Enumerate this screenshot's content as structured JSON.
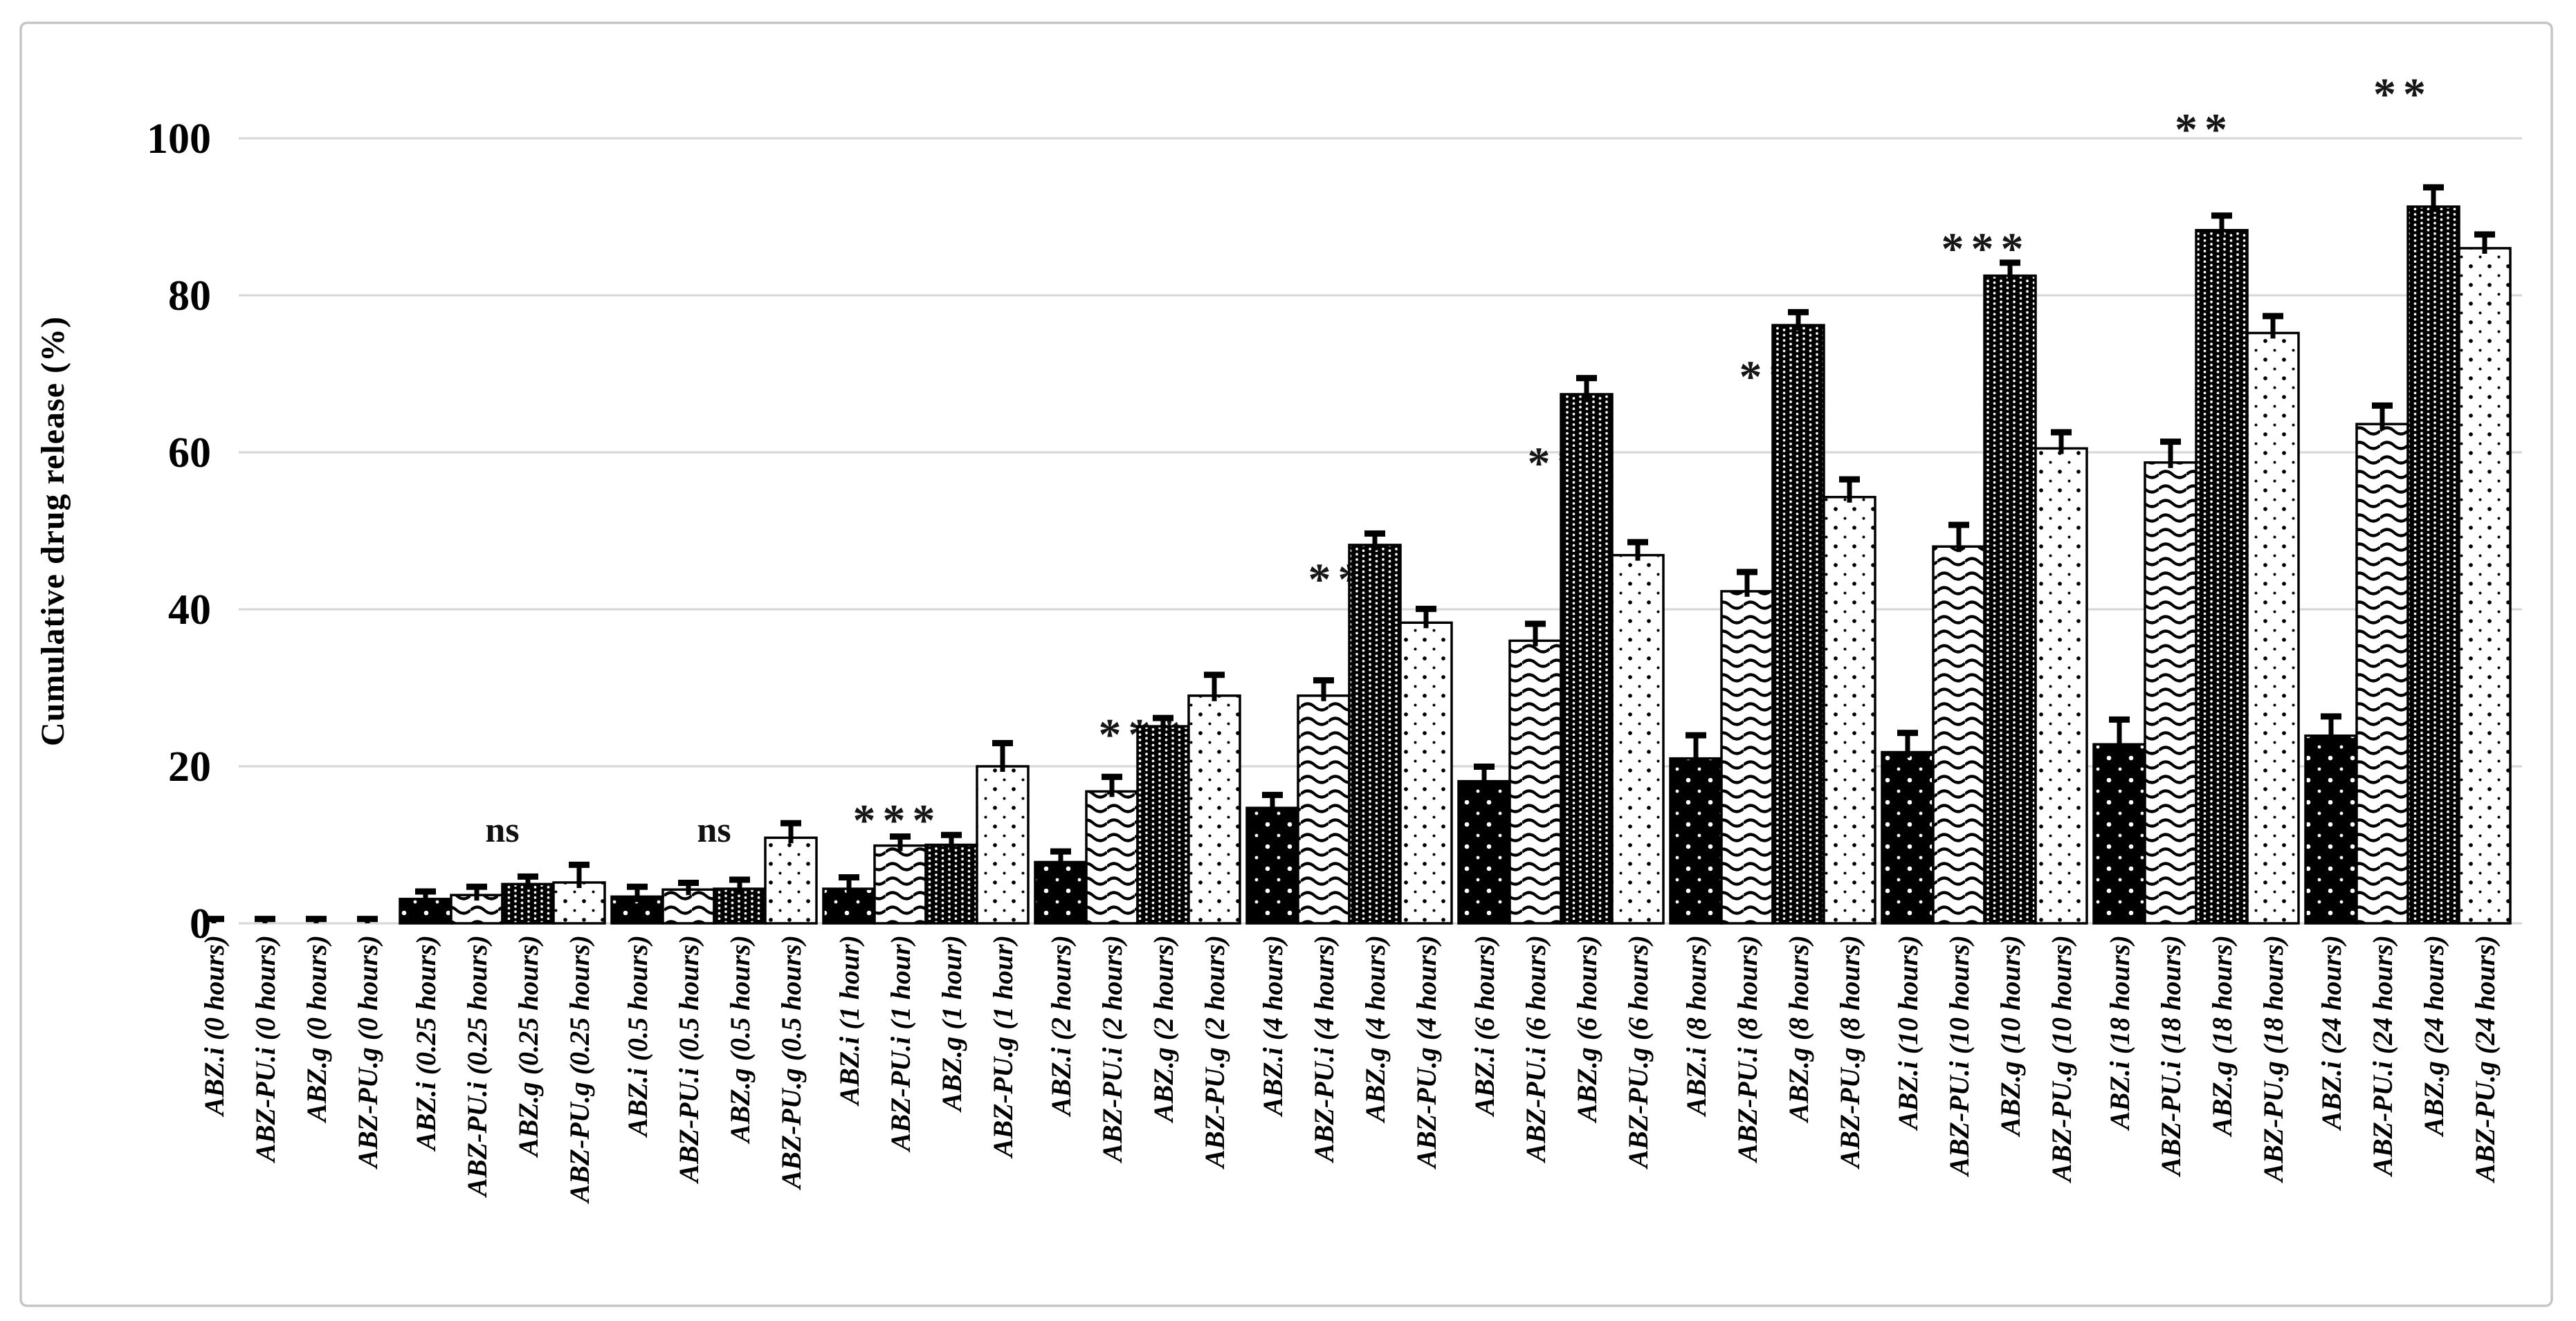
{
  "figure": {
    "background": "#ffffff",
    "border_color": "#c5c5c5"
  },
  "chart_data": {
    "type": "bar",
    "title": "",
    "xlabel": "",
    "ylabel": "Cumulative drug release (%)",
    "ylim": [
      0,
      100
    ],
    "yticks": [
      0,
      20,
      40,
      60,
      80,
      100
    ],
    "grid": true,
    "legend_position": "none",
    "palette": "black-and-white fill patterns with black outlines and upper error bars",
    "timepoints": [
      "0 hours",
      "0.25 hours",
      "0.5 hours",
      "1 hour",
      "2 hours",
      "4 hours",
      "6 hours",
      "8 hours",
      "10 hours",
      "18 hours",
      "24 hours"
    ],
    "categories": [
      "ABZ.i (0 hours)",
      "ABZ-PU.i (0 hours)",
      "ABZ.g (0 hours)",
      "ABZ-PU.g (0 hours)",
      "ABZ.i (0.25 hours)",
      "ABZ-PU.i (0.25 hours)",
      "ABZ.g (0.25 hours)",
      "ABZ-PU.g (0.25 hours)",
      "ABZ.i (0.5 hours)",
      "ABZ-PU.i (0.5 hours)",
      "ABZ.g (0.5 hours)",
      "ABZ-PU.g (0.5 hours)",
      "ABZ.i (1 hour)",
      "ABZ-PU.i (1 hour)",
      "ABZ.g (1 hour)",
      "ABZ-PU.g (1 hour)",
      "ABZ.i (2 hours)",
      "ABZ-PU.i (2 hours)",
      "ABZ.g (2 hours)",
      "ABZ-PU.g (2 hours)",
      "ABZ.i (4 hours)",
      "ABZ-PU.i (4 hours)",
      "ABZ.g (4 hours)",
      "ABZ-PU.g (4 hours)",
      "ABZ.i (6 hours)",
      "ABZ-PU.i (6 hours)",
      "ABZ.g (6 hours)",
      "ABZ-PU.g (6 hours)",
      "ABZ.i (8 hours)",
      "ABZ-PU.i (8 hours)",
      "ABZ.g (8 hours)",
      "ABZ-PU.g (8 hours)",
      "ABZ.i (10 hours)",
      "ABZ-PU.i (10 hours)",
      "ABZ.g (10 hours)",
      "ABZ-PU.g (10 hours)",
      "ABZ.i (18 hours)",
      "ABZ-PU.i (18 hours)",
      "ABZ.g (18 hours)",
      "ABZ-PU.g (18 hours)",
      "ABZ.i (24 hours)",
      "ABZ-PU.i (24 hours)",
      "ABZ.g (24 hours)",
      "ABZ-PU.g (24 hours)"
    ],
    "series": [
      {
        "name": "ABZ.i",
        "pattern": "black-with-white-dots",
        "values": [
          0,
          3.1,
          3.4,
          4.4,
          7.8,
          14.7,
          18.1,
          21.0,
          21.8,
          22.8,
          23.9
        ],
        "errors": [
          0.6,
          1.0,
          1.3,
          1.5,
          1.4,
          1.7,
          1.9,
          3.0,
          2.5,
          3.2,
          2.5
        ]
      },
      {
        "name": "ABZ-PU.i",
        "pattern": "horizontal-wavy-lines",
        "values": [
          0,
          3.6,
          4.3,
          9.9,
          16.8,
          29.0,
          36.0,
          42.3,
          48.0,
          58.7,
          63.6
        ],
        "errors": [
          0.6,
          1.1,
          0.9,
          1.2,
          1.9,
          2.0,
          2.2,
          2.5,
          2.8,
          2.7,
          2.4
        ]
      },
      {
        "name": "ABZ.g",
        "pattern": "dense-white-dot-grid-on-black",
        "values": [
          0,
          5.0,
          4.4,
          10.0,
          25.1,
          48.2,
          67.4,
          76.2,
          82.5,
          88.3,
          91.3
        ],
        "errors": [
          0.6,
          1.0,
          1.2,
          1.3,
          1.1,
          1.5,
          2.1,
          1.7,
          1.7,
          1.9,
          2.5
        ]
      },
      {
        "name": "ABZ-PU.g",
        "pattern": "sparse-black-dots",
        "values": [
          0,
          5.2,
          10.9,
          20.0,
          29.0,
          38.3,
          46.9,
          54.3,
          60.5,
          75.2,
          86.0
        ],
        "errors": [
          0.6,
          2.3,
          1.9,
          3.0,
          2.7,
          1.8,
          1.7,
          2.3,
          2.1,
          2.2,
          1.8
        ]
      }
    ],
    "significance_markers": [
      {
        "timepoint": "0.25 hours",
        "text": "ns",
        "x": 726,
        "y": 12
      },
      {
        "timepoint": "0.5 hours",
        "text": "ns",
        "x": 1032,
        "y": 12
      },
      {
        "timepoint": "1 hour",
        "text": "***",
        "x": 1297,
        "y": 13.5
      },
      {
        "timepoint": "2 hours",
        "text": "***",
        "x": 1652,
        "y": 24.4
      },
      {
        "timepoint": "4 hours",
        "text": "***",
        "x": 1955,
        "y": 44.2
      },
      {
        "timepoint": "6 hours",
        "text": "***",
        "x": 2272,
        "y": 59.0
      },
      {
        "timepoint": "8 hours",
        "text": "***",
        "x": 2578,
        "y": 70.0
      },
      {
        "timepoint": "10 hours",
        "text": "***",
        "x": 2870,
        "y": 86.3
      },
      {
        "timepoint": "18 hours",
        "text": "**",
        "x": 3186,
        "y": 101.5
      },
      {
        "timepoint": "24 hours",
        "text": "**",
        "x": 3473,
        "y": 106.0
      }
    ]
  }
}
